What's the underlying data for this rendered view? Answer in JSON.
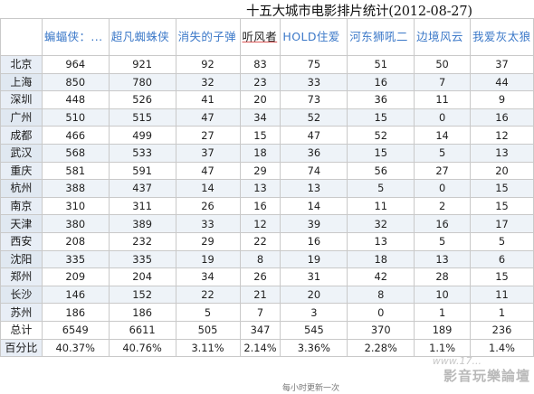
{
  "title": "十五大城市电影排片统计(2012-08-27)",
  "columns": [
    "蝙蝠侠：...",
    "超凡蜘蛛侠",
    "消失的子弹",
    "听风者",
    "HOLD住爱",
    "河东狮吼二",
    "边境风云",
    "我爱灰太狼"
  ],
  "rows": [
    {
      "city": "北京",
      "values": [
        "964",
        "921",
        "92",
        "83",
        "75",
        "51",
        "50",
        "37"
      ]
    },
    {
      "city": "上海",
      "values": [
        "850",
        "780",
        "32",
        "23",
        "33",
        "16",
        "7",
        "44"
      ]
    },
    {
      "city": "深圳",
      "values": [
        "448",
        "526",
        "41",
        "20",
        "73",
        "36",
        "11",
        "9"
      ]
    },
    {
      "city": "广州",
      "values": [
        "510",
        "515",
        "47",
        "34",
        "52",
        "15",
        "0",
        "16"
      ]
    },
    {
      "city": "成都",
      "values": [
        "466",
        "499",
        "27",
        "15",
        "47",
        "52",
        "14",
        "12"
      ]
    },
    {
      "city": "武汉",
      "values": [
        "568",
        "533",
        "37",
        "18",
        "36",
        "15",
        "5",
        "13"
      ]
    },
    {
      "city": "重庆",
      "values": [
        "581",
        "591",
        "47",
        "29",
        "74",
        "56",
        "27",
        "20"
      ]
    },
    {
      "city": "杭州",
      "values": [
        "388",
        "437",
        "14",
        "13",
        "13",
        "5",
        "0",
        "15"
      ]
    },
    {
      "city": "南京",
      "values": [
        "310",
        "311",
        "26",
        "16",
        "14",
        "11",
        "2",
        "15"
      ]
    },
    {
      "city": "天津",
      "values": [
        "380",
        "389",
        "33",
        "12",
        "39",
        "32",
        "16",
        "17"
      ]
    },
    {
      "city": "西安",
      "values": [
        "208",
        "232",
        "29",
        "22",
        "16",
        "13",
        "5",
        "5"
      ]
    },
    {
      "city": "沈阳",
      "values": [
        "335",
        "335",
        "19",
        "8",
        "19",
        "18",
        "13",
        "6"
      ]
    },
    {
      "city": "郑州",
      "values": [
        "209",
        "204",
        "34",
        "26",
        "31",
        "42",
        "28",
        "15"
      ]
    },
    {
      "city": "长沙",
      "values": [
        "146",
        "152",
        "22",
        "21",
        "20",
        "8",
        "10",
        "11"
      ]
    },
    {
      "city": "苏州",
      "values": [
        "186",
        "186",
        "5",
        "7",
        "3",
        "0",
        "1",
        "1"
      ]
    }
  ],
  "total": {
    "label": "总计",
    "values": [
      "6549",
      "6611",
      "505",
      "347",
      "545",
      "370",
      "189",
      "236"
    ]
  },
  "percent": {
    "label": "百分比",
    "values": [
      "40.37%",
      "40.76%",
      "3.11%",
      "2.14%",
      "3.36%",
      "2.28%",
      "1.1%",
      "1.4%"
    ]
  },
  "watermark": "影音玩樂論壇",
  "watermark_url": "www.17...",
  "footer": "每小时更新一次"
}
